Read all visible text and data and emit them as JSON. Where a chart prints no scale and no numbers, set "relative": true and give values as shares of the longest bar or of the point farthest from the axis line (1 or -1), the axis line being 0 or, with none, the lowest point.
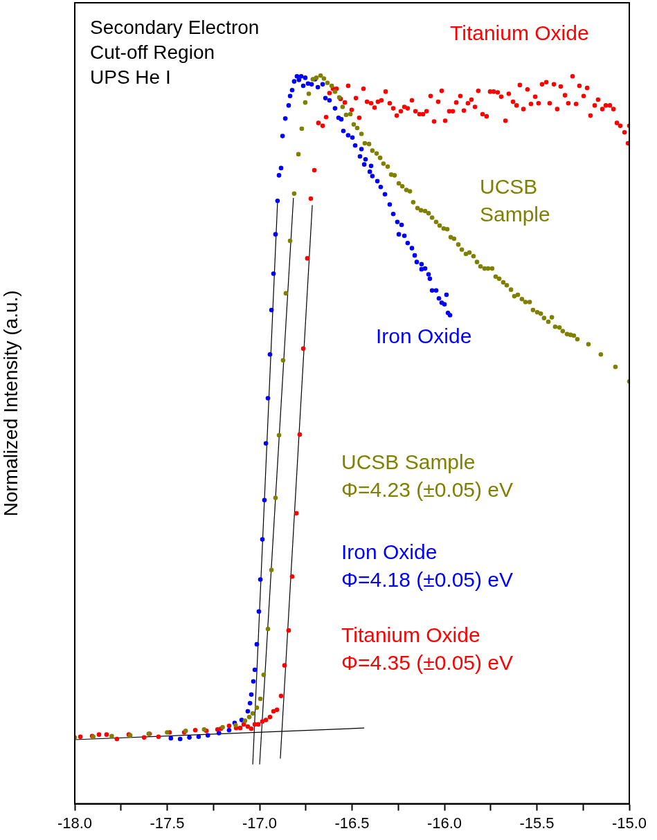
{
  "chart_data": {
    "type": "scatter",
    "ylabel": "Normalized Intensity (a.u.)",
    "relative": true,
    "xlim": [
      -18,
      -15
    ],
    "xticks": [
      {
        "value": -18,
        "label": "-18.0"
      },
      {
        "value": -17.75,
        "label": null
      },
      {
        "value": -17.5,
        "label": "-17.5"
      },
      {
        "value": -17.25,
        "label": null
      },
      {
        "value": -17,
        "label": "-17.0"
      },
      {
        "value": -16.75,
        "label": null
      },
      {
        "value": -16.5,
        "label": "-16.5"
      },
      {
        "value": -16.25,
        "label": null
      },
      {
        "value": -16,
        "label": "-16.0"
      },
      {
        "value": -15.75,
        "label": null
      },
      {
        "value": -15.5,
        "label": "-15.5"
      },
      {
        "value": -15.25,
        "label": null
      },
      {
        "value": -15,
        "label": "-15.0"
      }
    ],
    "grid": false,
    "legend": false,
    "annotations": [
      "Secondary Electron\nCut-off Region\nUPS He I",
      "UCSB Sample\nΦ=4.23 (±0.05) eV",
      "Iron Oxide\nΦ=4.18 (±0.05) eV",
      "Titanium Oxide\nΦ=4.35 (±0.05) eV"
    ],
    "series": [
      {
        "name": "UCSB Sample",
        "color": "#808000",
        "marker": "circle",
        "x": [
          -18,
          -17.9,
          -17.8,
          -17.7,
          -17.6,
          -17.5,
          -17.4,
          -17.3,
          -17.2,
          -17.13,
          -17.079,
          -17.056,
          -17.037,
          -17.015,
          -16.996,
          -16.978,
          -16.955,
          -16.936,
          -16.914,
          -16.895,
          -16.873,
          -16.858,
          -16.835,
          -16.813,
          -16.79,
          -16.772,
          -16.753,
          -16.734,
          -16.712,
          -16.693,
          -16.67,
          -16.652,
          -16.633,
          -16.61,
          -16.592,
          -16.569,
          -16.551,
          -16.532,
          -16.509,
          -16.491,
          -16.472,
          -16.449,
          -16.431,
          -16.408,
          -16.39,
          -16.367,
          -16.348,
          -16.33,
          -16.307,
          -16.288,
          -16.27,
          -16.247,
          -16.228,
          -16.206,
          -16.187,
          -16.169,
          -16.146,
          -16.127,
          -16.105,
          -16.086,
          -16.067,
          -16.045,
          -16.026,
          -16.004,
          -15.985,
          -15.966,
          -15.948,
          -15.925,
          -15.906,
          -15.884,
          -15.865,
          -15.843,
          -15.824,
          -15.805,
          -15.783,
          -15.764,
          -15.742,
          -15.723,
          -15.704,
          -15.682,
          -15.663,
          -15.64,
          -15.622,
          -15.603,
          -15.581,
          -15.562,
          -15.539,
          -15.521,
          -15.498,
          -15.479,
          -15.461,
          -15.438,
          -15.419,
          -15.401,
          -15.378,
          -15.36,
          -15.337,
          -15.318,
          -15.3,
          -15.281,
          -15.221,
          -15.154,
          -15.075,
          -15
        ],
        "values": [
          0.091,
          0.092,
          0.093,
          0.094,
          0.096,
          0.098,
          0.1,
          0.102,
          0.105,
          0.108,
          0.114,
          0.119,
          0.124,
          0.132,
          0.144,
          0.177,
          0.24,
          0.321,
          0.42,
          0.506,
          0.609,
          0.701,
          0.773,
          0.838,
          0.892,
          0.927,
          0.963,
          0.975,
          0.995,
          0.997,
          1,
          0.996,
          0.99,
          0.986,
          0.978,
          0.97,
          0.957,
          0.946,
          0.947,
          0.933,
          0.928,
          0.92,
          0.907,
          0.906,
          0.897,
          0.893,
          0.887,
          0.879,
          0.875,
          0.864,
          0.863,
          0.852,
          0.848,
          0.843,
          0.841,
          0.826,
          0.818,
          0.815,
          0.814,
          0.811,
          0.805,
          0.799,
          0.794,
          0.79,
          0.789,
          0.778,
          0.776,
          0.768,
          0.761,
          0.755,
          0.757,
          0.752,
          0.744,
          0.738,
          0.735,
          0.735,
          0.735,
          0.724,
          0.721,
          0.716,
          0.712,
          0.706,
          0.697,
          0.699,
          0.693,
          0.689,
          0.689,
          0.678,
          0.675,
          0.673,
          0.667,
          0.662,
          0.668,
          0.655,
          0.654,
          0.649,
          0.645,
          0.644,
          0.643,
          0.638,
          0.631,
          0.617,
          0.6,
          0.58
        ]
      },
      {
        "name": "Iron Oxide",
        "color": "#0000ff",
        "marker": "circle",
        "x": [
          -17.48,
          -17.43,
          -17.38,
          -17.33,
          -17.28,
          -17.22,
          -17.165,
          -17.135,
          -17.097,
          -17.064,
          -17.052,
          -17.045,
          -17.034,
          -17.026,
          -17.015,
          -17.004,
          -16.996,
          -16.985,
          -16.974,
          -16.966,
          -16.955,
          -16.944,
          -16.936,
          -16.925,
          -16.914,
          -16.903,
          -16.895,
          -16.884,
          -16.876,
          -16.861,
          -16.843,
          -16.835,
          -16.824,
          -16.813,
          -16.798,
          -16.787,
          -16.775,
          -16.764,
          -16.753,
          -16.738,
          -16.719,
          -16.7,
          -16.685,
          -16.659,
          -16.644,
          -16.622,
          -16.592,
          -16.573,
          -16.558,
          -16.547,
          -16.521,
          -16.498,
          -16.483,
          -16.457,
          -16.449,
          -16.434,
          -16.427,
          -16.404,
          -16.397,
          -16.39,
          -16.363,
          -16.345,
          -16.322,
          -16.296,
          -16.277,
          -16.255,
          -16.247,
          -16.232,
          -16.217,
          -16.199,
          -16.176,
          -16.161,
          -16.15,
          -16.124,
          -16.124,
          -16.105,
          -16.086,
          -16.079,
          -16.067,
          -16.045,
          -16.03,
          -16.015,
          -16,
          -15.989,
          -15.981,
          -15.97
        ],
        "values": [
          0.09,
          0.089,
          0.091,
          0.092,
          0.094,
          0.097,
          0.101,
          0.111,
          0.115,
          0.127,
          0.138,
          0.15,
          0.168,
          0.184,
          0.219,
          0.264,
          0.308,
          0.363,
          0.417,
          0.495,
          0.557,
          0.617,
          0.678,
          0.728,
          0.782,
          0.828,
          0.863,
          0.873,
          0.917,
          0.941,
          0.959,
          0.972,
          0.98,
          0.992,
          0.999,
          0.994,
          0.999,
          0.986,
          0.997,
          0.989,
          0.988,
          0.995,
          0.984,
          0.988,
          0.969,
          0.966,
          0.955,
          0.942,
          0.94,
          0.924,
          0.918,
          0.915,
          0.904,
          0.889,
          0.899,
          0.878,
          0.885,
          0.868,
          0.876,
          0.862,
          0.855,
          0.847,
          0.837,
          0.823,
          0.81,
          0.799,
          0.782,
          0.795,
          0.78,
          0.77,
          0.763,
          0.753,
          0.744,
          0.741,
          0.734,
          0.735,
          0.727,
          0.721,
          0.705,
          0.705,
          0.694,
          0.688,
          0.686,
          0.699,
          0.674,
          0.671
        ]
      },
      {
        "name": "Titanium Oxide",
        "color": "#ff0000",
        "marker": "circle",
        "x": [
          -17.97,
          -17.906,
          -17.869,
          -17.828,
          -17.772,
          -17.708,
          -17.625,
          -17.596,
          -17.547,
          -17.487,
          -17.408,
          -17.348,
          -17.288,
          -17.228,
          -17.21,
          -17.165,
          -17.127,
          -17.105,
          -17.086,
          -17.064,
          -17.045,
          -17.026,
          -17.007,
          -16.985,
          -16.966,
          -16.944,
          -16.925,
          -16.906,
          -16.884,
          -16.865,
          -16.843,
          -16.824,
          -16.801,
          -16.783,
          -16.764,
          -16.742,
          -16.723,
          -16.704,
          -16.682,
          -16.659,
          -16.64,
          -16.622,
          -16.603,
          -16.584,
          -16.562,
          -16.539,
          -16.521,
          -16.502,
          -16.479,
          -16.461,
          -16.438,
          -16.419,
          -16.397,
          -16.378,
          -16.36,
          -16.341,
          -16.318,
          -16.296,
          -16.277,
          -16.258,
          -16.236,
          -16.217,
          -16.199,
          -16.176,
          -16.157,
          -16.135,
          -16.116,
          -16.097,
          -16.075,
          -16.056,
          -16.034,
          -16.015,
          -15.996,
          -15.974,
          -15.955,
          -15.936,
          -15.914,
          -15.895,
          -15.873,
          -15.854,
          -15.835,
          -15.817,
          -15.794,
          -15.772,
          -15.753,
          -15.734,
          -15.712,
          -15.693,
          -15.67,
          -15.652,
          -15.629,
          -15.61,
          -15.592,
          -15.573,
          -15.551,
          -15.532,
          -15.509,
          -15.491,
          -15.472,
          -15.449,
          -15.431,
          -15.408,
          -15.39,
          -15.371,
          -15.348,
          -15.33,
          -15.307,
          -15.288,
          -15.27,
          -15.247,
          -15.228,
          -15.21,
          -15.187,
          -15.169,
          -15.146,
          -15.127,
          -15.105,
          -15.086,
          -15.067,
          -15.049,
          -15.026,
          -15.007,
          -15
        ],
        "values": [
          0.092,
          0.093,
          0.095,
          0.095,
          0.089,
          0.095,
          0.091,
          0.096,
          0.092,
          0.098,
          0.098,
          0.101,
          0.1,
          0.102,
          0.103,
          0.107,
          0.104,
          0.104,
          0.109,
          0.106,
          0.103,
          0.109,
          0.109,
          0.113,
          0.115,
          0.119,
          0.127,
          0.129,
          0.148,
          0.19,
          0.238,
          0.312,
          0.399,
          0.507,
          0.625,
          0.749,
          0.831,
          0.87,
          0.935,
          0.931,
          0.943,
          0.976,
          0.982,
          0.982,
          0.968,
          0.963,
          0.986,
          0.953,
          0.969,
          0.942,
          0.982,
          0.964,
          0.962,
          0.956,
          0.964,
          0.966,
          0.978,
          0.962,
          0.955,
          0.945,
          0.951,
          0.957,
          0.955,
          0.966,
          0.951,
          0.947,
          0.947,
          0.951,
          0.972,
          0.937,
          0.964,
          0.979,
          0.938,
          0.951,
          0.951,
          0.963,
          0.972,
          0.952,
          0.962,
          0.967,
          0.957,
          0.979,
          0.947,
          0.944,
          0.978,
          0.978,
          0.977,
          0.971,
          0.938,
          0.975,
          0.964,
          0.959,
          0.987,
          0.954,
          0.981,
          0.961,
          0.971,
          0.962,
          0.988,
          0.991,
          0.962,
          0.988,
          0.954,
          0.985,
          0.973,
          0.962,
          0.999,
          0.961,
          0.986,
          0.972,
          0.983,
          0.945,
          0.959,
          0.967,
          0.954,
          0.959,
          0.959,
          0.954,
          0.935,
          0.931,
          0.922,
          0.907,
          0.931
        ]
      },
      {
        "type": "line",
        "color": "#000000",
        "marker": "none",
        "x": [
          -17.037,
          -16.903
        ],
        "values": [
          0.054,
          0.826
        ]
      },
      {
        "type": "line",
        "color": "#000000",
        "marker": "none",
        "x": [
          -17.0,
          -16.817
        ],
        "values": [
          0.054,
          0.832
        ]
      },
      {
        "type": "line",
        "color": "#000000",
        "marker": "none",
        "x": [
          -16.888,
          -16.715
        ],
        "values": [
          0.062,
          0.822
        ]
      },
      {
        "type": "line",
        "color": "#000000",
        "marker": "none",
        "x": [
          -18.0,
          -16.434
        ],
        "values": [
          0.088,
          0.104
        ]
      }
    ]
  }
}
